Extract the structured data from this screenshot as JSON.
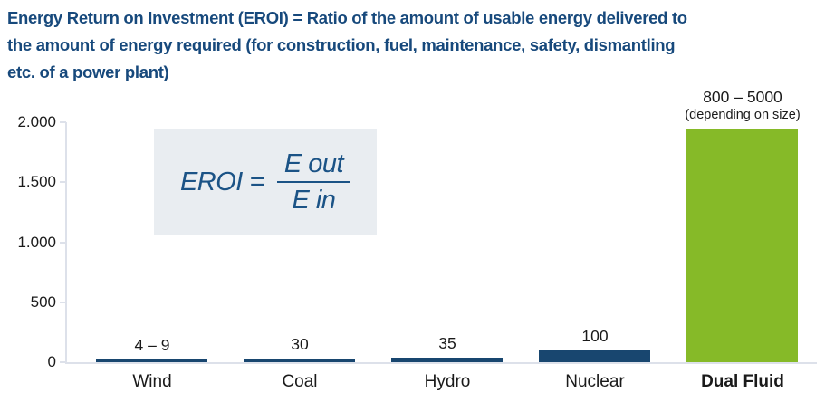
{
  "header": {
    "title_lines": [
      "Energy Return on Investment (EROI) = Ratio of the amount of usable energy delivered to",
      "the amount of energy required (for construction, fuel, maintenance, safety, dismantling",
      "etc. of a power plant)"
    ]
  },
  "colors": {
    "title_blue": "#17497c",
    "bar_navy": "#18466f",
    "bar_green": "#86ba28",
    "formula_bg": "#e9edf1",
    "formula_blue": "#1b5386",
    "axis_gray": "#dde1ea",
    "label_black": "#1a1a1a"
  },
  "formula": {
    "lhs": "EROI =",
    "numerator": "E out",
    "denominator": "E in"
  },
  "chart_data": {
    "type": "bar",
    "title": "Energy Return on Investment (EROI)",
    "categories": [
      "Wind",
      "Coal",
      "Hydro",
      "Nuclear",
      "Dual Fluid"
    ],
    "y_axis": {
      "tick_labels": [
        "0",
        "500",
        "1.000",
        "1.500",
        "2.000"
      ],
      "tick_values": [
        0,
        500,
        1000,
        1500,
        2000
      ],
      "ylim": [
        0,
        2000
      ],
      "number_format": "thousands-dot"
    },
    "bars": [
      {
        "category": "Wind",
        "value_label": "4 – 9",
        "value_min": 4,
        "value_max": 9,
        "drawn_value": 9,
        "color": "navy",
        "bold_category": false
      },
      {
        "category": "Coal",
        "value_label": "30",
        "value": 30,
        "drawn_value": 30,
        "color": "navy",
        "bold_category": false
      },
      {
        "category": "Hydro",
        "value_label": "35",
        "value": 35,
        "drawn_value": 35,
        "color": "navy",
        "bold_category": false
      },
      {
        "category": "Nuclear",
        "value_label": "100",
        "value": 100,
        "drawn_value": 100,
        "color": "navy",
        "bold_category": false
      },
      {
        "category": "Dual Fluid",
        "value_label": "800 – 5000",
        "value_sublabel": "(depending on size)",
        "value_min": 800,
        "value_max": 5000,
        "drawn_value": 1945,
        "color": "green",
        "bold_category": true
      }
    ],
    "grid": false,
    "legend": false
  }
}
